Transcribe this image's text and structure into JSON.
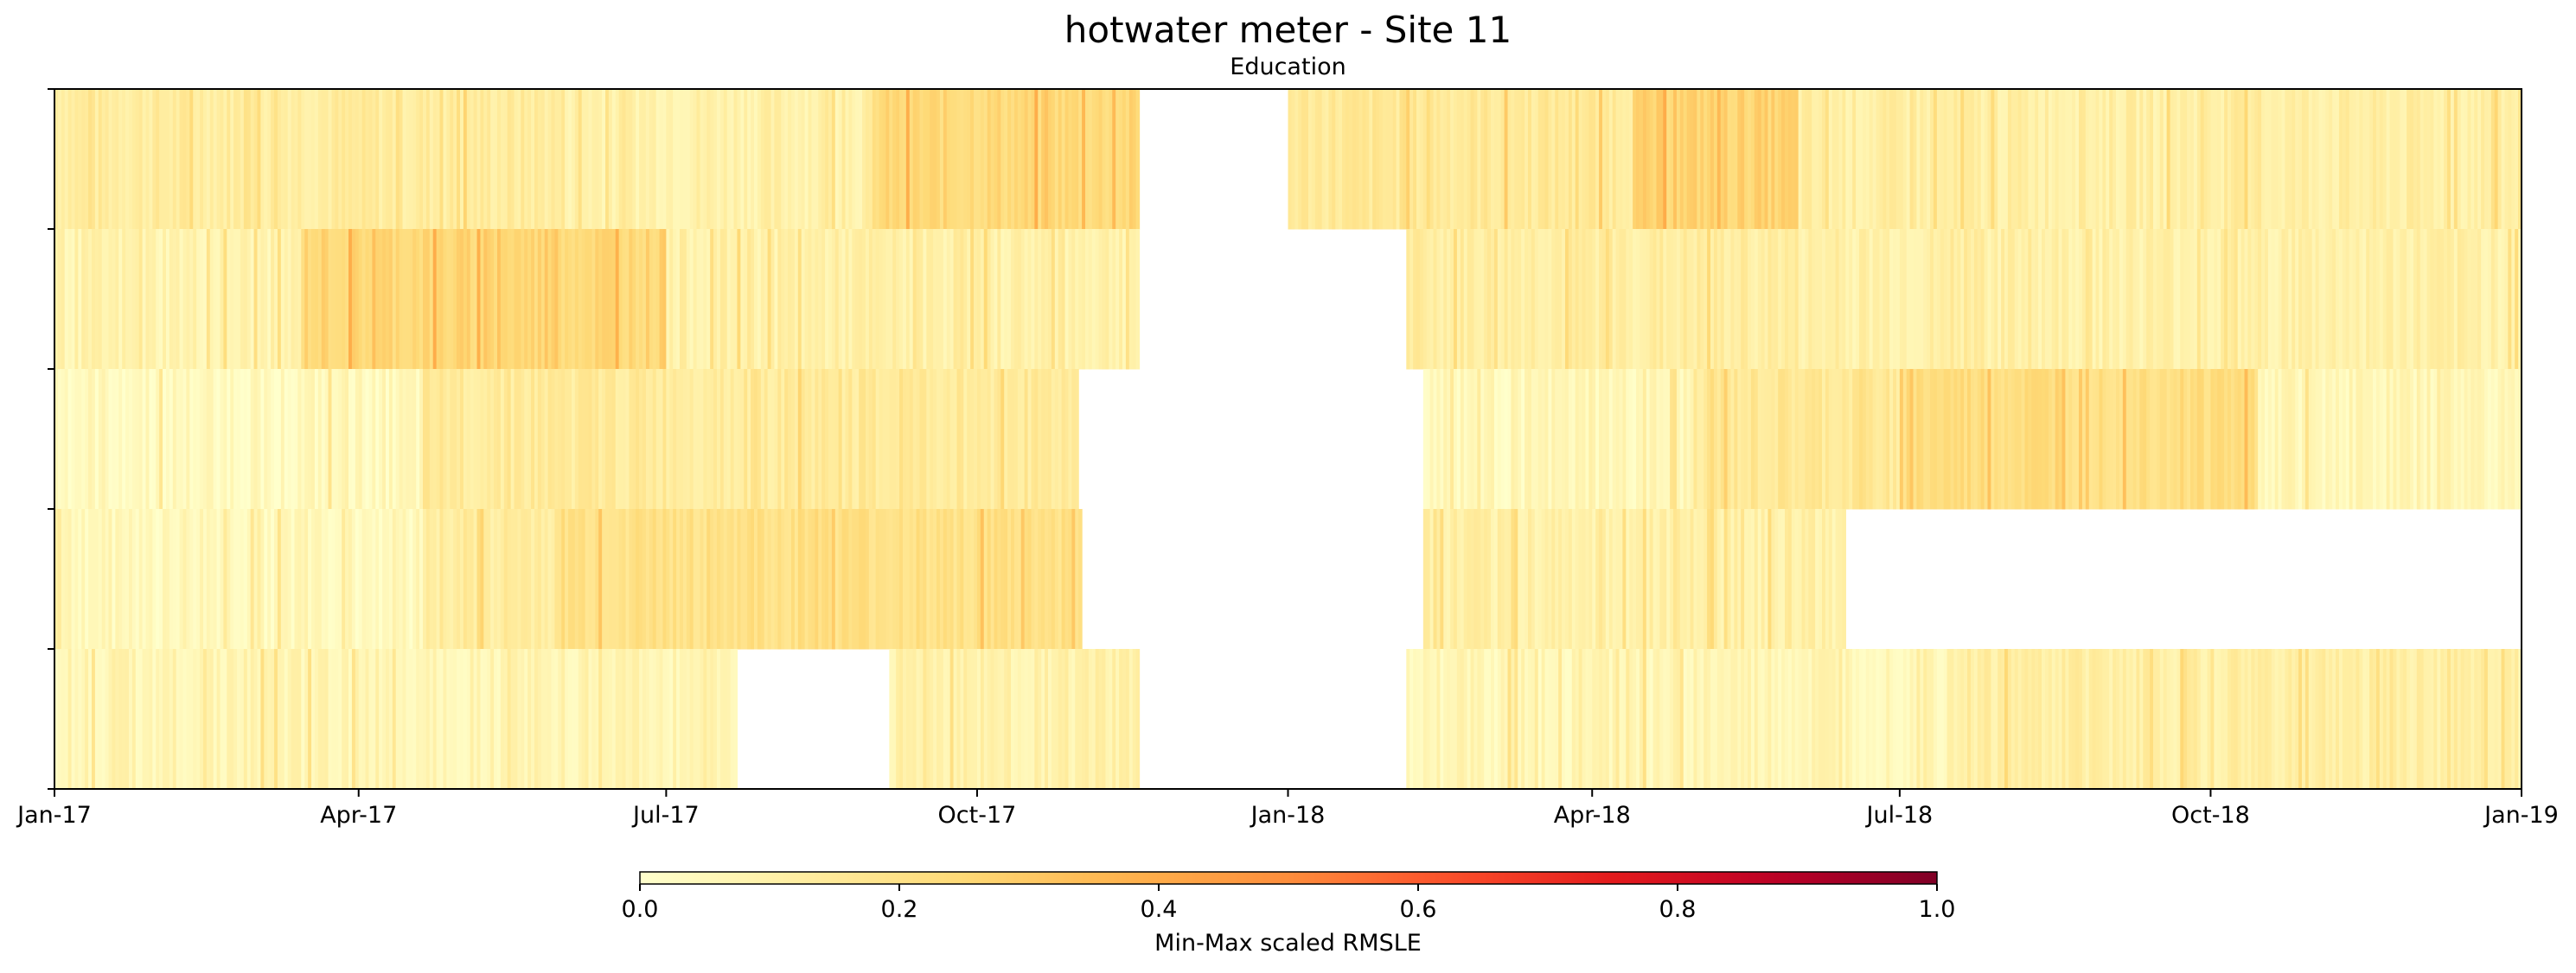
{
  "chart_data": {
    "type": "heatmap",
    "title": "hotwater meter - Site 11",
    "subtitle": "Education",
    "x_range": [
      "2017-01-01",
      "2019-01-01"
    ],
    "x_ticks": [
      {
        "date": "2017-01-01",
        "label": "Jan-17"
      },
      {
        "date": "2017-04-01",
        "label": "Apr-17"
      },
      {
        "date": "2017-07-01",
        "label": "Jul-17"
      },
      {
        "date": "2017-10-01",
        "label": "Oct-17"
      },
      {
        "date": "2018-01-01",
        "label": "Jan-18"
      },
      {
        "date": "2018-04-01",
        "label": "Apr-18"
      },
      {
        "date": "2018-07-01",
        "label": "Jul-18"
      },
      {
        "date": "2018-10-01",
        "label": "Oct-18"
      },
      {
        "date": "2019-01-01",
        "label": "Jan-19"
      }
    ],
    "colorscale": "YlOrRd",
    "colorbar": {
      "label": "Min-Max scaled RMSLE",
      "range": [
        0.0,
        1.0
      ],
      "ticks": [
        "0.0",
        "0.2",
        "0.4",
        "0.6",
        "0.8",
        "1.0"
      ]
    },
    "rows": [
      {
        "segments": [
          {
            "start": "2017-01-01",
            "end": "2017-06-01",
            "value": 0.13
          },
          {
            "start": "2017-06-01",
            "end": "2017-09-01",
            "value": 0.1
          },
          {
            "start": "2017-09-01",
            "end": "2017-11-18",
            "value": 0.24
          },
          {
            "start": "2018-01-01",
            "end": "2018-04-15",
            "value": 0.15
          },
          {
            "start": "2018-04-15",
            "end": "2018-06-01",
            "value": 0.26
          },
          {
            "start": "2018-06-01",
            "end": "2019-01-01",
            "value": 0.11
          }
        ]
      },
      {
        "segments": [
          {
            "start": "2017-01-01",
            "end": "2017-03-15",
            "value": 0.08
          },
          {
            "start": "2017-03-15",
            "end": "2017-07-01",
            "value": 0.25
          },
          {
            "start": "2017-07-01",
            "end": "2017-11-18",
            "value": 0.1
          },
          {
            "start": "2018-02-05",
            "end": "2018-06-01",
            "value": 0.12
          },
          {
            "start": "2018-06-01",
            "end": "2019-01-01",
            "value": 0.1
          }
        ]
      },
      {
        "segments": [
          {
            "start": "2017-01-01",
            "end": "2017-04-20",
            "value": 0.04
          },
          {
            "start": "2017-04-20",
            "end": "2017-10-31",
            "value": 0.14
          },
          {
            "start": "2018-02-10",
            "end": "2018-05-01",
            "value": 0.05
          },
          {
            "start": "2018-05-01",
            "end": "2018-07-01",
            "value": 0.15
          },
          {
            "start": "2018-07-01",
            "end": "2018-10-15",
            "value": 0.22
          },
          {
            "start": "2018-10-15",
            "end": "2019-01-01",
            "value": 0.06
          }
        ]
      },
      {
        "segments": [
          {
            "start": "2017-01-01",
            "end": "2017-04-20",
            "value": 0.05
          },
          {
            "start": "2017-04-20",
            "end": "2017-06-01",
            "value": 0.13
          },
          {
            "start": "2017-06-01",
            "end": "2017-11-01",
            "value": 0.2
          },
          {
            "start": "2018-02-10",
            "end": "2018-06-15",
            "value": 0.1
          }
        ]
      },
      {
        "segments": [
          {
            "start": "2017-01-01",
            "end": "2017-07-22",
            "value": 0.07
          },
          {
            "start": "2017-09-05",
            "end": "2017-11-18",
            "value": 0.09
          },
          {
            "start": "2018-02-05",
            "end": "2018-07-15",
            "value": 0.06
          },
          {
            "start": "2018-07-15",
            "end": "2019-01-01",
            "value": 0.11
          }
        ]
      }
    ]
  }
}
